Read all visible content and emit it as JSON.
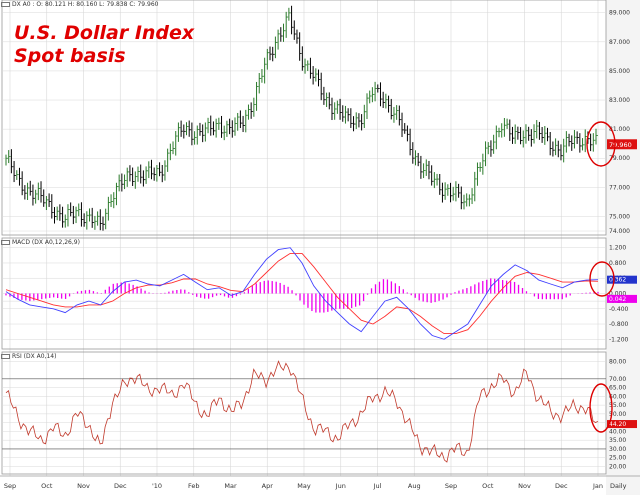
{
  "annotation": {
    "line1": "U.S. Dollar Index",
    "line2": "Spot basis"
  },
  "period_label": "Daily",
  "x_ticks": [
    "Sep",
    "Oct",
    "Nov",
    "Dec",
    "'10",
    "Feb",
    "Mar",
    "Apr",
    "May",
    "Jun",
    "Jul",
    "Aug",
    "Sep",
    "Oct",
    "Nov",
    "Dec",
    "Jan"
  ],
  "colors": {
    "price_up": "#2a7a2a",
    "price_down": "#000000",
    "last_box": "#dd1111",
    "macd_line": "#4040ff",
    "signal_line": "#ff3030",
    "histogram": "#ee00ee",
    "rsi_line": "#c0392b",
    "circle": "#dd0000",
    "grid": "#d8d8d8"
  },
  "chart_data": [
    {
      "type": "line",
      "panel": "price",
      "legend": "DX A0 : O: 80.121   H: 80.160   L: 79.838   C: 79.960",
      "series": [
        {
          "name": "DX A0",
          "style": "ohlc",
          "x": [
            0,
            2,
            4,
            6,
            8,
            10,
            12,
            14,
            16,
            18,
            20,
            22,
            24,
            26,
            28,
            30,
            32,
            34,
            36,
            38,
            40,
            42,
            44,
            46,
            48,
            50,
            52,
            54,
            56,
            58,
            60,
            62,
            64,
            66,
            68,
            70,
            72,
            74,
            76,
            78,
            80,
            82,
            84,
            86,
            88,
            90,
            92,
            94,
            96,
            98,
            100
          ],
          "values": [
            79.0,
            77.4,
            76.8,
            76.2,
            75.6,
            74.7,
            75.4,
            74.9,
            74.3,
            76.6,
            77.4,
            78.0,
            77.9,
            77.9,
            79.8,
            81.0,
            80.8,
            80.8,
            81.4,
            80.9,
            81.5,
            83.0,
            85.5,
            87.4,
            88.6,
            86.0,
            84.8,
            83.0,
            82.5,
            81.5,
            81.7,
            83.5,
            83.2,
            82.0,
            80.3,
            78.6,
            77.6,
            77.0,
            76.5,
            75.9,
            78.2,
            79.7,
            81.5,
            80.3,
            80.8,
            80.7,
            80.2,
            79.5,
            80.2,
            80.4,
            79.96
          ]
        }
      ],
      "y_ticks": [
        "89.000",
        "87.000",
        "85.000",
        "83.000",
        "81.000",
        "79.000",
        "77.000",
        "75.000",
        "74.000"
      ],
      "ylim": [
        74.0,
        89.6
      ],
      "last_value": "79.960"
    },
    {
      "type": "line",
      "panel": "macd",
      "legend": "MACD (DX A0,12,26,9)",
      "series": [
        {
          "name": "MACD",
          "values": [
            0.05,
            -0.15,
            -0.3,
            -0.35,
            -0.4,
            -0.5,
            -0.3,
            -0.2,
            -0.3,
            0.05,
            0.3,
            0.35,
            0.25,
            0.2,
            0.35,
            0.5,
            0.3,
            0.1,
            0.15,
            -0.05,
            0.05,
            0.5,
            0.9,
            1.15,
            1.2,
            0.8,
            0.2,
            -0.2,
            -0.5,
            -0.8,
            -1.0,
            -0.6,
            -0.2,
            -0.1,
            -0.4,
            -0.8,
            -1.1,
            -1.2,
            -1.0,
            -0.8,
            -0.3,
            0.2,
            0.5,
            0.75,
            0.6,
            0.35,
            0.25,
            0.15,
            0.3,
            0.35,
            0.362
          ]
        },
        {
          "name": "Signal",
          "values": [
            0.1,
            0.0,
            -0.1,
            -0.2,
            -0.3,
            -0.35,
            -0.35,
            -0.3,
            -0.3,
            -0.2,
            0.0,
            0.15,
            0.22,
            0.22,
            0.28,
            0.38,
            0.38,
            0.25,
            0.18,
            0.08,
            0.05,
            0.25,
            0.55,
            0.85,
            1.05,
            1.05,
            0.7,
            0.3,
            -0.1,
            -0.4,
            -0.7,
            -0.8,
            -0.6,
            -0.35,
            -0.4,
            -0.6,
            -0.85,
            -1.05,
            -1.05,
            -0.95,
            -0.6,
            -0.2,
            0.15,
            0.45,
            0.55,
            0.5,
            0.4,
            0.3,
            0.3,
            0.33,
            0.32
          ]
        },
        {
          "name": "Histogram",
          "values": [
            -0.05,
            -0.15,
            -0.2,
            -0.15,
            -0.1,
            -0.15,
            0.05,
            0.1,
            0.0,
            0.25,
            0.3,
            0.2,
            0.03,
            -0.02,
            0.07,
            0.12,
            -0.08,
            -0.15,
            -0.03,
            -0.13,
            0.0,
            0.25,
            0.35,
            0.3,
            0.15,
            -0.25,
            -0.5,
            -0.5,
            -0.4,
            -0.4,
            -0.3,
            0.2,
            0.4,
            0.25,
            0.0,
            -0.2,
            -0.25,
            -0.15,
            0.05,
            0.15,
            0.3,
            0.4,
            0.35,
            0.3,
            0.05,
            -0.15,
            -0.15,
            -0.15,
            0.0,
            0.02,
            0.042
          ]
        }
      ],
      "y_ticks": [
        "1.200",
        "0.800",
        "0.400",
        "0.000",
        "-0.200",
        "-0.400",
        "-0.800",
        "-1.200"
      ],
      "ylim": [
        -1.35,
        1.35
      ],
      "last_values": [
        "0.362",
        "0.042"
      ]
    },
    {
      "type": "line",
      "panel": "rsi",
      "legend": "RSI (DX A0,14)",
      "series": [
        {
          "name": "RSI",
          "values": [
            62,
            48,
            40,
            35,
            42,
            38,
            50,
            44,
            30,
            58,
            66,
            73,
            62,
            66,
            60,
            68,
            56,
            48,
            60,
            50,
            58,
            72,
            70,
            76,
            78,
            58,
            42,
            40,
            36,
            44,
            50,
            60,
            62,
            58,
            44,
            32,
            28,
            26,
            30,
            28,
            60,
            66,
            70,
            62,
            74,
            58,
            52,
            48,
            56,
            52,
            44.2
          ]
        }
      ],
      "y_ticks": [
        "80.00",
        "70.00",
        "65.00",
        "60.00",
        "55.00",
        "50.00",
        "45.00",
        "40.00",
        "35.00",
        "30.00",
        "25.00",
        "20.00"
      ],
      "ylim": [
        18,
        83
      ],
      "reference_lines": [
        70,
        30
      ],
      "last_value": "44.20"
    }
  ]
}
